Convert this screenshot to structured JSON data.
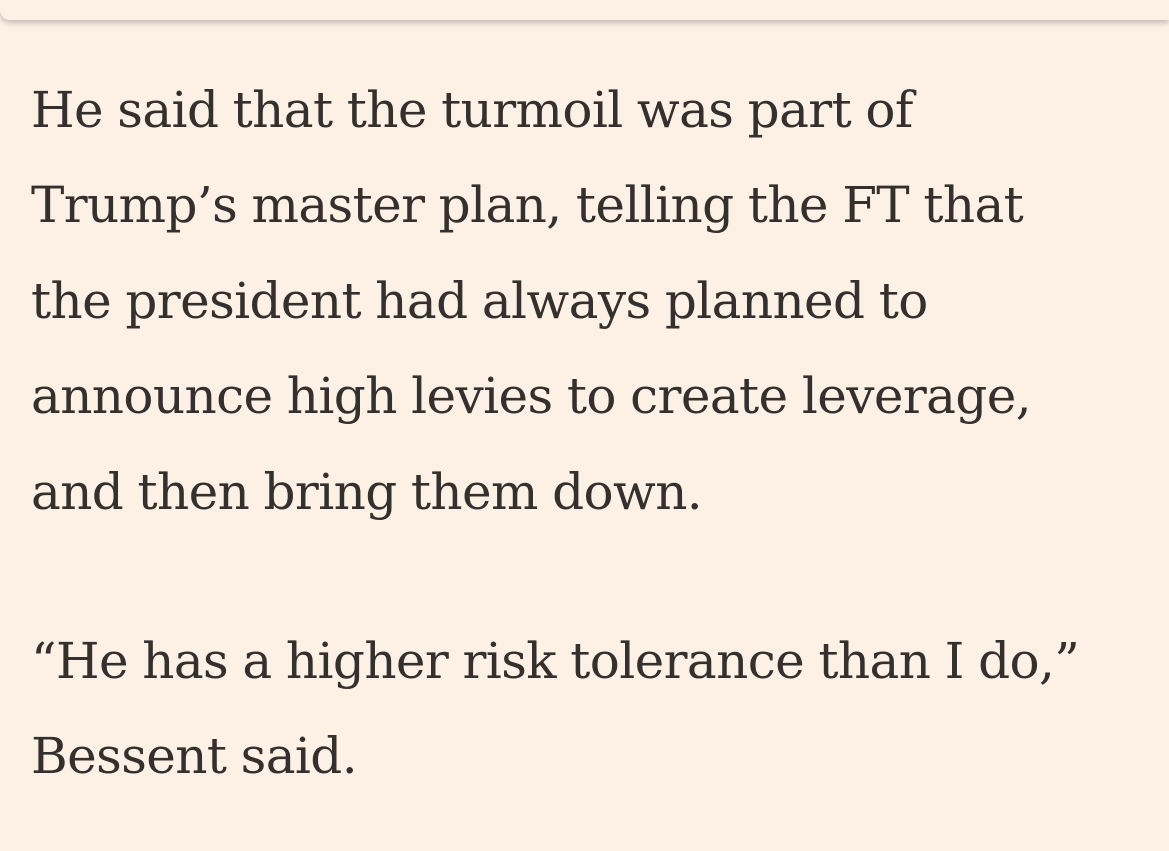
{
  "article": {
    "paragraphs": [
      {
        "lines": [
          "He said that the turmoil was part of",
          "Trump’s master plan, telling the FT that",
          "the president had always planned to",
          "announce high levies to create leverage,",
          "and then bring them down."
        ]
      },
      {
        "lines": [
          "“He has a higher risk tolerance than I do,”",
          "Bessent said."
        ]
      }
    ]
  }
}
